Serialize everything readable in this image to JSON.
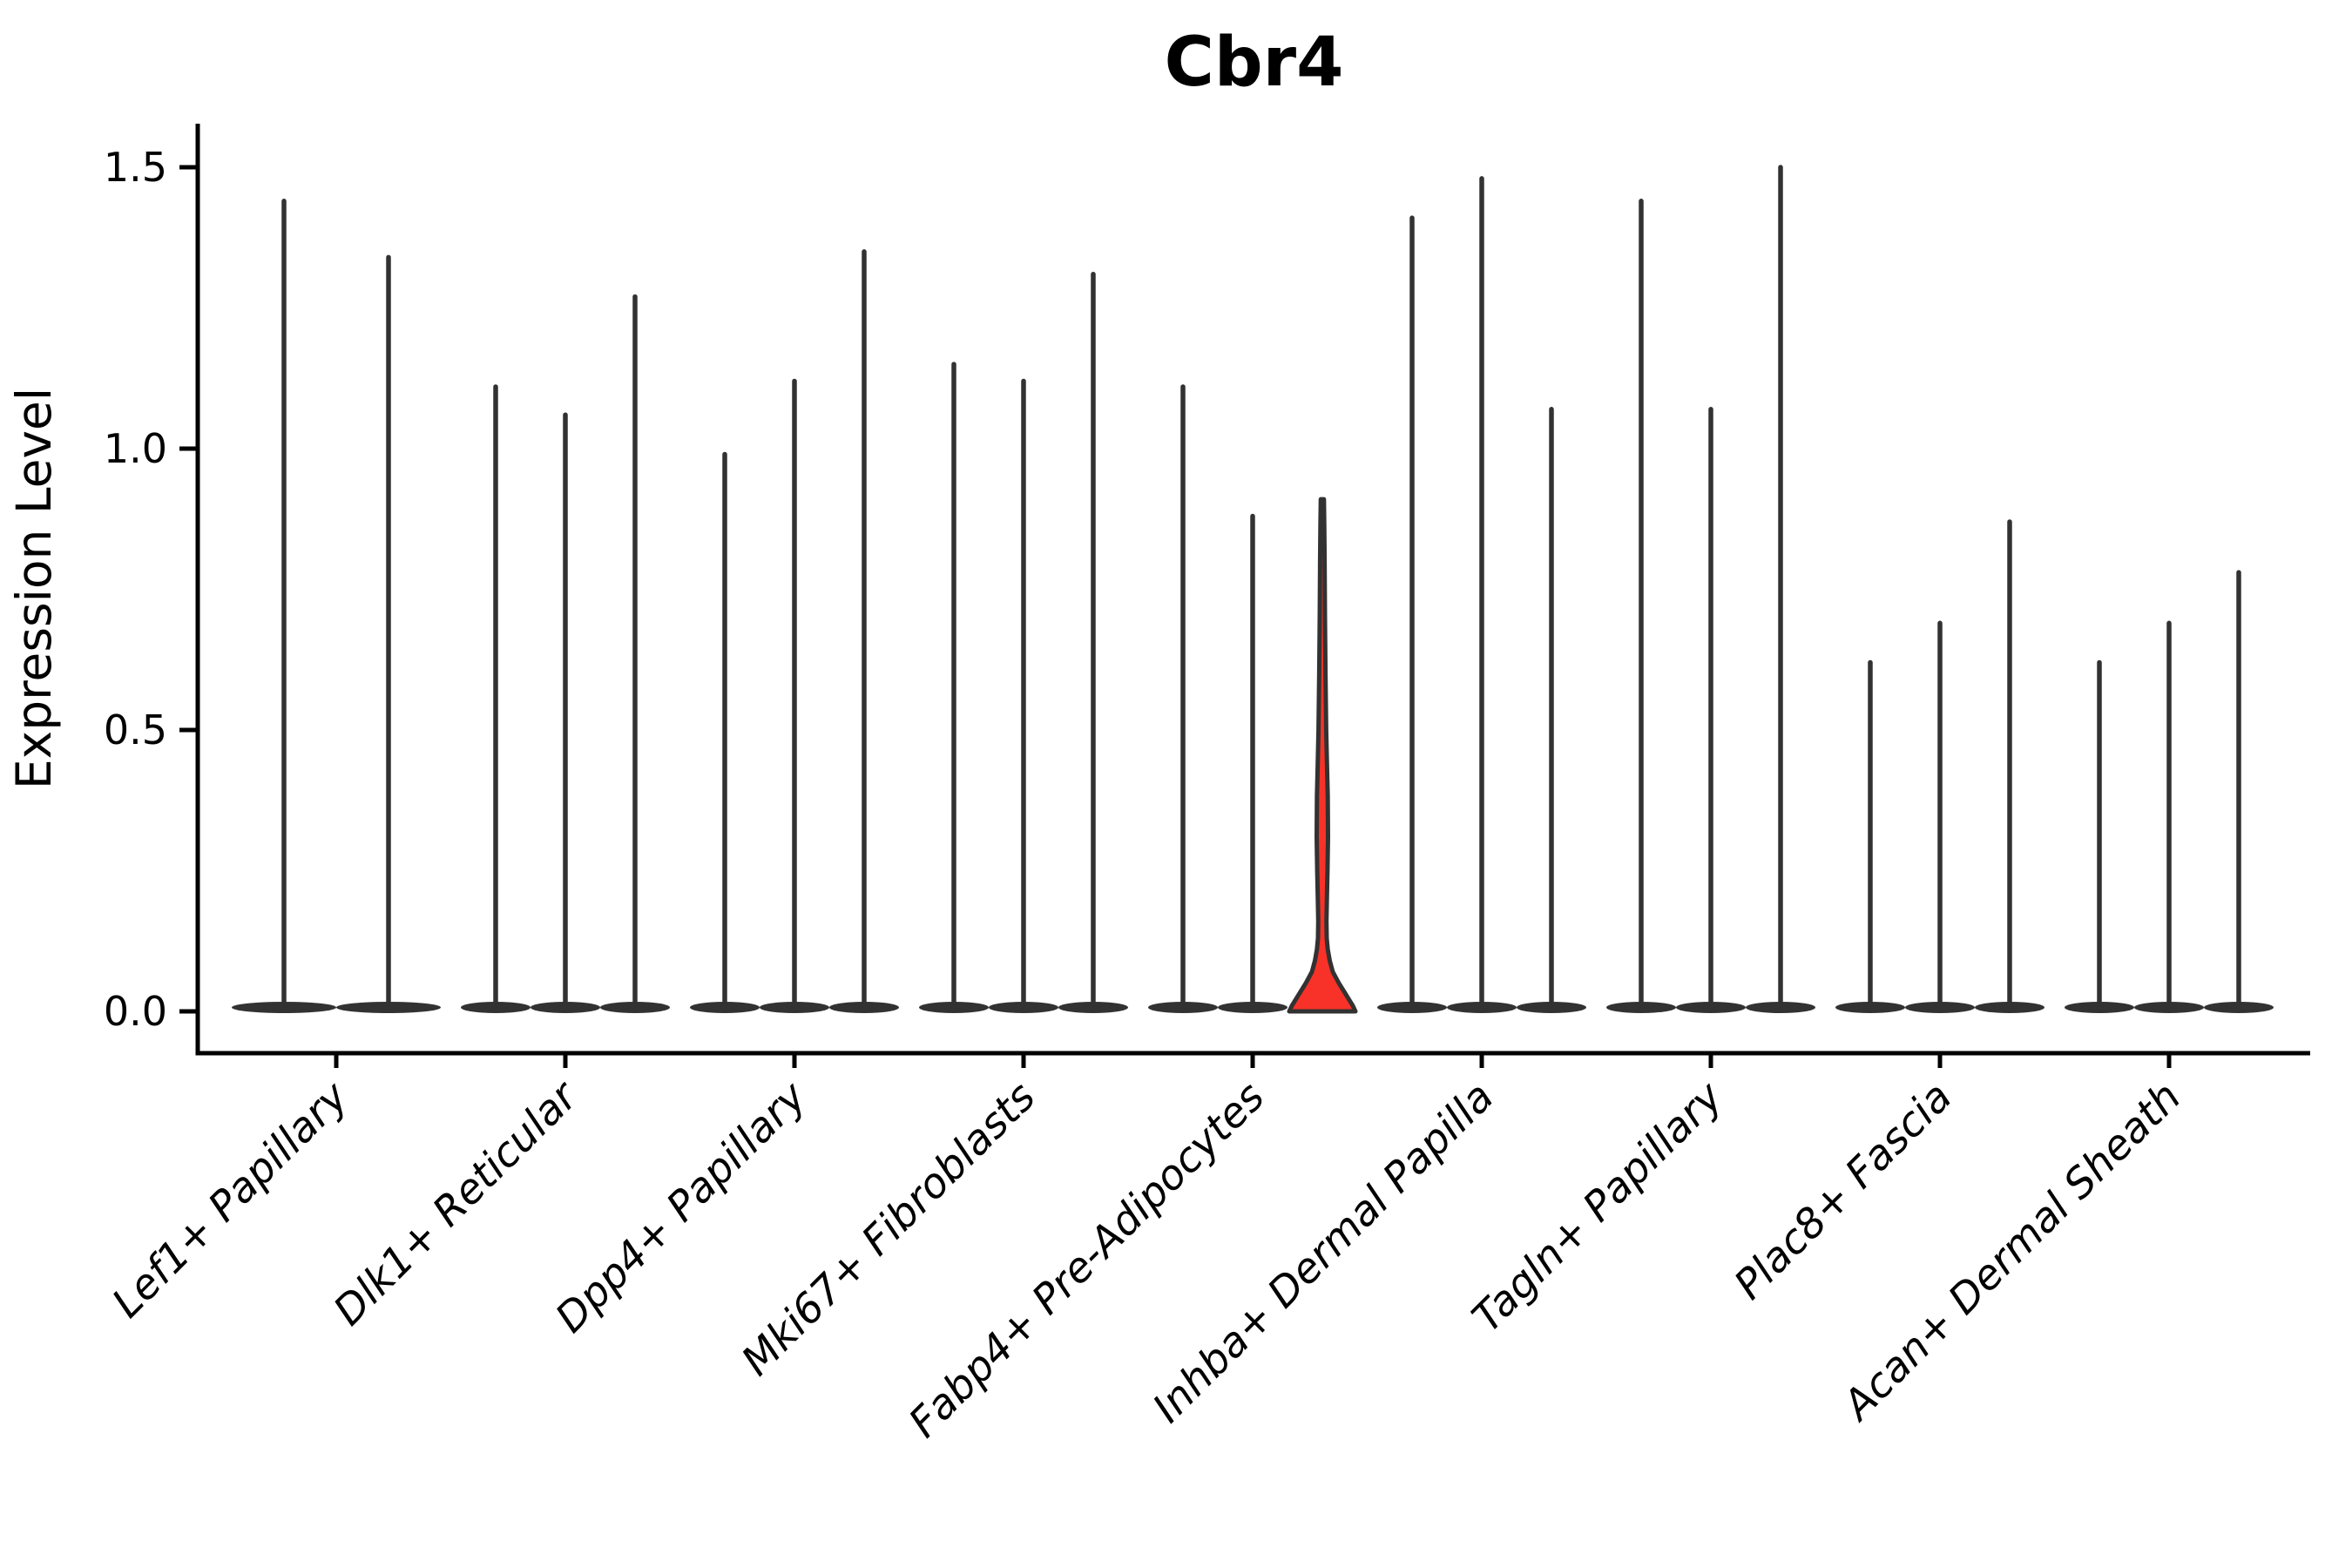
{
  "figure": {
    "background": "#ffffff"
  },
  "chart_data": {
    "type": "violin",
    "title": "Cbr4",
    "xlabel": "",
    "ylabel": "Expression Level",
    "ylim": [
      0,
      1.58
    ],
    "yticks": [
      0.0,
      0.5,
      1.0,
      1.5
    ],
    "ytick_labels": [
      "0.0",
      "0.5",
      "1.0",
      "1.5"
    ],
    "grid": false,
    "legend": null,
    "description": "Stacked-by-sample violin plot; each category holds 2-3 ultra-thin violins whose density mass sits at 0 (flat pancake at baseline) with a thin spike rising to the max expression value. One violin (third of Fabp4+ Pre-Adipocytes) is highlighted red with a visible bell-shaped base.",
    "categories": [
      {
        "label": "Lef1+ Papillary",
        "violins": [
          {
            "max": 1.44
          },
          {
            "max": 1.34
          }
        ]
      },
      {
        "label": "Dlk1+ Reticular",
        "violins": [
          {
            "max": 1.11
          },
          {
            "max": 1.06
          },
          {
            "max": 1.27
          }
        ]
      },
      {
        "label": "Dpp4+ Papillary",
        "violins": [
          {
            "max": 0.99
          },
          {
            "max": 1.12
          },
          {
            "max": 1.35
          }
        ]
      },
      {
        "label": "Mki67+ Fibroblasts",
        "violins": [
          {
            "max": 1.15
          },
          {
            "max": 1.12
          },
          {
            "max": 1.31
          }
        ]
      },
      {
        "label": "Fabp4+ Pre-Adipocytes",
        "violins": [
          {
            "max": 1.11
          },
          {
            "max": 0.88
          },
          {
            "max": 0.91,
            "highlight": true
          }
        ]
      },
      {
        "label": "Inhba+ Dermal Papilla",
        "violins": [
          {
            "max": 1.41
          },
          {
            "max": 1.48
          },
          {
            "max": 1.07
          }
        ]
      },
      {
        "label": "Tagln+ Papillary",
        "violins": [
          {
            "max": 1.44
          },
          {
            "max": 1.07
          },
          {
            "max": 1.5
          }
        ]
      },
      {
        "label": "Plac8+ Fascia",
        "violins": [
          {
            "max": 0.62
          },
          {
            "max": 0.69
          },
          {
            "max": 0.87
          }
        ]
      },
      {
        "label": "Acan+ Dermal Sheath",
        "violins": [
          {
            "max": 0.62
          },
          {
            "max": 0.69
          },
          {
            "max": 0.78
          }
        ]
      }
    ],
    "colors": {
      "violin_outline": "#323232",
      "violin_fill_dark": "#323232",
      "highlight_fill": "#f83228",
      "axis": "#000000",
      "text": "#000000"
    }
  }
}
